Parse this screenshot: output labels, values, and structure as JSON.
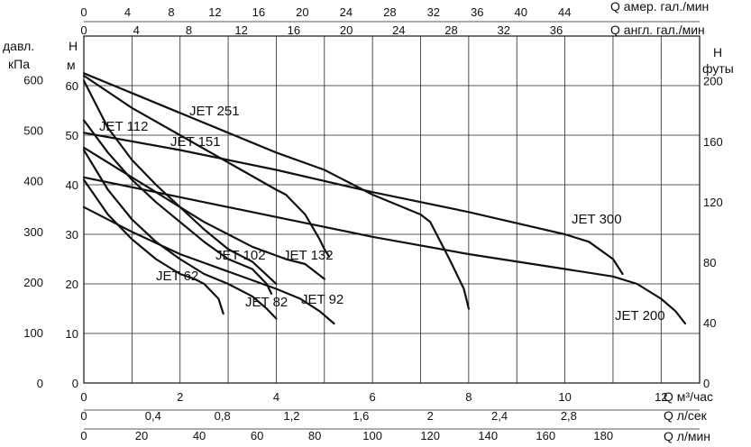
{
  "chart_data": {
    "type": "line",
    "title": "",
    "axes": {
      "x_main": {
        "label": "Q м³/час",
        "ticks": [
          "0",
          "2",
          "4",
          "6",
          "8",
          "10",
          "12"
        ],
        "range": [
          0,
          12.8
        ]
      },
      "x_ls": {
        "label": "Q л/сек",
        "ticks": [
          "0",
          "0,4",
          "0,8",
          "1,2",
          "1,6",
          "2",
          "2,4",
          "2,8"
        ]
      },
      "x_lmin": {
        "label": "Q л/мин",
        "ticks": [
          "0",
          "20",
          "40",
          "60",
          "80",
          "100",
          "120",
          "140",
          "160",
          "180"
        ]
      },
      "x_top_us": {
        "label": "Q амер. гал./мин",
        "ticks": [
          "0",
          "4",
          "8",
          "12",
          "16",
          "20",
          "24",
          "28",
          "32",
          "36",
          "40",
          "44"
        ]
      },
      "x_top_uk": {
        "label": "Q англ. гал./мин",
        "ticks": [
          "0",
          "4",
          "8",
          "12",
          "16",
          "20",
          "24",
          "28",
          "32",
          "36"
        ]
      },
      "y_kpa": {
        "label_line1": "давл.",
        "label_line2": "кПа",
        "ticks": [
          "0",
          "100",
          "200",
          "300",
          "400",
          "500",
          "600"
        ]
      },
      "y_m": {
        "label_line1": "H",
        "label_line2": "м",
        "ticks": [
          "0",
          "10",
          "20",
          "30",
          "40",
          "50",
          "60"
        ],
        "range": [
          0,
          70
        ]
      },
      "y_ft": {
        "label_line1": "H",
        "label_line2": "футы",
        "ticks": [
          "0",
          "40",
          "80",
          "120",
          "160",
          "200"
        ]
      }
    },
    "grid": true,
    "series": [
      {
        "name": "JET 62",
        "x": [
          0,
          0.5,
          1,
          1.5,
          2,
          2.3,
          2.5,
          2.8,
          2.9
        ],
        "y": [
          41,
          34,
          29,
          25,
          22,
          21,
          20,
          17,
          14
        ]
      },
      {
        "name": "JET 82",
        "x": [
          0,
          0.5,
          1,
          1.5,
          2,
          2.5,
          3.0,
          3.5,
          3.8,
          4.0
        ],
        "y": [
          47,
          39,
          33,
          28.5,
          25,
          22,
          20,
          17.5,
          15,
          13
        ]
      },
      {
        "name": "JET 102",
        "x": [
          0,
          0.5,
          1,
          1.5,
          2,
          2.5,
          3,
          3.5,
          3.8,
          3.9
        ],
        "y": [
          53,
          46.5,
          41,
          36.5,
          32.5,
          28.5,
          25,
          23,
          20,
          18
        ]
      },
      {
        "name": "JET 92",
        "x": [
          0,
          1,
          2,
          3,
          4,
          4.5,
          4.9,
          5.2
        ],
        "y": [
          35.5,
          30.5,
          26,
          22.5,
          19,
          17,
          14.5,
          12
        ]
      },
      {
        "name": "JET 112",
        "x": [
          0,
          0.5,
          1,
          1.5,
          2,
          2.5,
          3,
          3.5,
          4.0
        ],
        "y": [
          61,
          51.5,
          45,
          40,
          35.5,
          31,
          27,
          24.5,
          20
        ]
      },
      {
        "name": "JET 132",
        "x": [
          0,
          0.5,
          1,
          1.5,
          2,
          2.5,
          3,
          3.5,
          4.2,
          4.6,
          5.0
        ],
        "y": [
          47.5,
          44.5,
          41.5,
          38.5,
          35.5,
          32.5,
          30,
          27.5,
          25,
          24,
          21
        ]
      },
      {
        "name": "JET 151",
        "x": [
          0,
          1,
          2,
          3,
          4,
          4.2,
          4.6,
          4.9,
          5.0,
          5.1
        ],
        "y": [
          62,
          55.5,
          50,
          44.5,
          39,
          38,
          34,
          29,
          27,
          25.5
        ]
      },
      {
        "name": "JET 251",
        "x": [
          0,
          1,
          2,
          3,
          4,
          5,
          6,
          7,
          7.2,
          7.6,
          7.9,
          8.0
        ],
        "y": [
          62.5,
          58.5,
          54.5,
          50.5,
          46.5,
          43,
          38,
          34,
          32.5,
          25,
          19,
          15
        ]
      },
      {
        "name": "JET 300",
        "x": [
          0,
          2,
          4,
          6,
          8,
          10.0,
          10.5,
          11.0,
          11.2
        ],
        "y": [
          50.5,
          47,
          43,
          38.5,
          34.5,
          30,
          28.5,
          25,
          22
        ]
      },
      {
        "name": "JET 200",
        "x": [
          0,
          2,
          4,
          6,
          8,
          10,
          11.0,
          11.5,
          12.0,
          12.3,
          12.5
        ],
        "y": [
          41.5,
          37.5,
          33.5,
          29.5,
          26,
          23,
          21.5,
          20,
          17,
          14.5,
          12
        ]
      }
    ]
  }
}
